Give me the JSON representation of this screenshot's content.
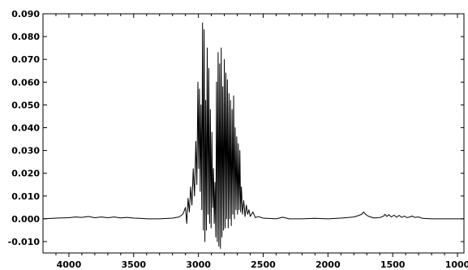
{
  "chart_data": {
    "type": "line",
    "title": "",
    "xlabel": "",
    "ylabel": "",
    "xlim": [
      4200,
      950
    ],
    "ylim": [
      -0.015,
      0.09
    ],
    "x_reversed": true,
    "grid": false,
    "legend": "none",
    "x_ticks": [
      4000,
      3500,
      3000,
      2500,
      2000,
      1500,
      1000
    ],
    "x_tick_labels": [
      "4000",
      "3500",
      "3000",
      "2500",
      "2000",
      "1500",
      "1000"
    ],
    "y_ticks": [
      0.09,
      0.08,
      0.07,
      0.06,
      0.05,
      0.04,
      0.03,
      0.02,
      0.01,
      0.0,
      -0.01
    ],
    "y_tick_labels": [
      "0.090",
      "0.080",
      "0.070",
      "0.060",
      "0.050",
      "0.040",
      "0.030",
      "0.020",
      "0.010",
      "0.000",
      "-0.010"
    ],
    "series": [
      {
        "color": "#000000",
        "points": [
          [
            4200,
            0.0
          ],
          [
            4100,
            0.0003
          ],
          [
            4000,
            0.0005
          ],
          [
            3950,
            0.0008
          ],
          [
            3900,
            0.0006
          ],
          [
            3850,
            0.001
          ],
          [
            3800,
            0.0005
          ],
          [
            3750,
            0.0008
          ],
          [
            3700,
            0.0005
          ],
          [
            3650,
            0.0008
          ],
          [
            3600,
            0.0004
          ],
          [
            3550,
            0.0006
          ],
          [
            3500,
            0.0003
          ],
          [
            3450,
            0.0002
          ],
          [
            3400,
            0.0
          ],
          [
            3300,
            0.0
          ],
          [
            3200,
            0.0003
          ],
          [
            3150,
            0.0008
          ],
          [
            3120,
            0.002
          ],
          [
            3100,
            0.005
          ],
          [
            3090,
            -0.002
          ],
          [
            3080,
            0.009
          ],
          [
            3070,
            0.003
          ],
          [
            3060,
            0.014
          ],
          [
            3050,
            0.006
          ],
          [
            3040,
            0.022
          ],
          [
            3030,
            0.01
          ],
          [
            3020,
            0.034
          ],
          [
            3012,
            0.015
          ],
          [
            3004,
            0.06
          ],
          [
            2998,
            0.022
          ],
          [
            2992,
            0.057
          ],
          [
            2986,
            0.012
          ],
          [
            2980,
            0.05
          ],
          [
            2974,
            0.004
          ],
          [
            2968,
            0.086
          ],
          [
            2962,
            -0.005
          ],
          [
            2956,
            0.083
          ],
          [
            2950,
            -0.01
          ],
          [
            2944,
            0.052
          ],
          [
            2938,
            -0.005
          ],
          [
            2932,
            0.075
          ],
          [
            2926,
            0.002
          ],
          [
            2920,
            0.066
          ],
          [
            2914,
            -0.002
          ],
          [
            2908,
            0.048
          ],
          [
            2902,
            -0.004
          ],
          [
            2896,
            0.038
          ],
          [
            2890,
            0.005
          ],
          [
            2884,
            0.022
          ],
          [
            2878,
            -0.002
          ],
          [
            2872,
            0.016
          ],
          [
            2866,
            -0.008
          ],
          [
            2860,
            0.06
          ],
          [
            2854,
            -0.01
          ],
          [
            2848,
            0.073
          ],
          [
            2842,
            -0.012
          ],
          [
            2836,
            0.068
          ],
          [
            2830,
            -0.013
          ],
          [
            2824,
            0.075
          ],
          [
            2818,
            -0.008
          ],
          [
            2812,
            0.058
          ],
          [
            2806,
            -0.005
          ],
          [
            2800,
            0.07
          ],
          [
            2794,
            -0.004
          ],
          [
            2788,
            0.064
          ],
          [
            2782,
            0.0
          ],
          [
            2776,
            0.061
          ],
          [
            2770,
            -0.004
          ],
          [
            2764,
            0.055
          ],
          [
            2758,
            0.0
          ],
          [
            2752,
            0.052
          ],
          [
            2746,
            -0.003
          ],
          [
            2740,
            0.048
          ],
          [
            2734,
            0.002
          ],
          [
            2728,
            0.054
          ],
          [
            2722,
            0.0
          ],
          [
            2716,
            0.04
          ],
          [
            2710,
            0.004
          ],
          [
            2704,
            0.036
          ],
          [
            2698,
            0.002
          ],
          [
            2692,
            0.033
          ],
          [
            2686,
            0.004
          ],
          [
            2680,
            0.03
          ],
          [
            2674,
            0.003
          ],
          [
            2668,
            0.014
          ],
          [
            2660,
            0.002
          ],
          [
            2650,
            0.008
          ],
          [
            2640,
            0.001
          ],
          [
            2630,
            0.006
          ],
          [
            2620,
            0.002
          ],
          [
            2610,
            0.004
          ],
          [
            2600,
            0.001
          ],
          [
            2580,
            0.003
          ],
          [
            2560,
            0.0005
          ],
          [
            2540,
            0.001
          ],
          [
            2500,
            0.0003
          ],
          [
            2400,
            0.0
          ],
          [
            2350,
            0.0007
          ],
          [
            2300,
            0.0
          ],
          [
            2200,
            0.0
          ],
          [
            2100,
            0.0002
          ],
          [
            2000,
            0.0
          ],
          [
            1900,
            0.0003
          ],
          [
            1800,
            0.0008
          ],
          [
            1760,
            0.0015
          ],
          [
            1740,
            0.002
          ],
          [
            1725,
            0.003
          ],
          [
            1710,
            0.002
          ],
          [
            1690,
            0.0012
          ],
          [
            1650,
            0.0004
          ],
          [
            1600,
            0.0005
          ],
          [
            1570,
            0.0012
          ],
          [
            1560,
            0.002
          ],
          [
            1545,
            0.001
          ],
          [
            1530,
            0.0018
          ],
          [
            1510,
            0.0008
          ],
          [
            1490,
            0.0016
          ],
          [
            1470,
            0.0007
          ],
          [
            1450,
            0.0015
          ],
          [
            1430,
            0.0006
          ],
          [
            1410,
            0.0012
          ],
          [
            1390,
            0.0005
          ],
          [
            1370,
            0.0008
          ],
          [
            1350,
            0.0012
          ],
          [
            1330,
            0.0006
          ],
          [
            1300,
            0.0008
          ],
          [
            1270,
            0.0002
          ],
          [
            1200,
            0.0
          ],
          [
            1100,
            0.0
          ],
          [
            1000,
            0.0
          ],
          [
            950,
            0.0
          ]
        ]
      }
    ]
  }
}
